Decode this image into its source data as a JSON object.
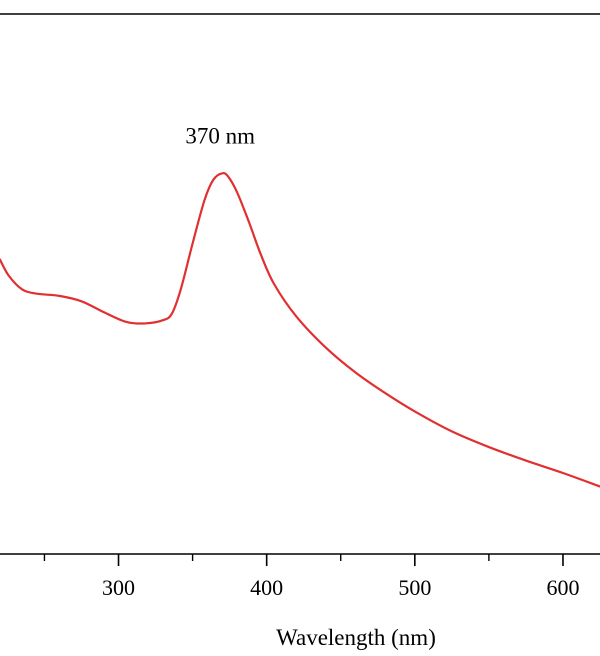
{
  "chart_data": {
    "type": "line",
    "title": "",
    "xlabel": "Wavelength (nm)",
    "ylabel": "",
    "xlim": [
      220,
      625
    ],
    "ylim": [
      0,
      1
    ],
    "grid": false,
    "x_ticks": [
      300,
      400,
      500,
      600
    ],
    "x_tick_labels": [
      "300",
      "400",
      "500",
      "600"
    ],
    "x_minor_ticks": [
      250,
      350,
      450,
      550
    ],
    "annotations": [
      {
        "text": "370 nm",
        "x": 370,
        "y": 0.76
      }
    ],
    "series": [
      {
        "color": "#e03030",
        "x": [
          220,
          226,
          235,
          245,
          260,
          275,
          290,
          305,
          318,
          330,
          336,
          342,
          350,
          358,
          364,
          370,
          374,
          380,
          388,
          396,
          405,
          420,
          440,
          460,
          480,
          500,
          525,
          550,
          575,
          600,
          625
        ],
        "y": [
          0.545,
          0.515,
          0.49,
          0.482,
          0.478,
          0.468,
          0.448,
          0.43,
          0.427,
          0.433,
          0.445,
          0.49,
          0.575,
          0.655,
          0.693,
          0.705,
          0.699,
          0.67,
          0.615,
          0.555,
          0.5,
          0.44,
          0.382,
          0.336,
          0.298,
          0.264,
          0.227,
          0.198,
          0.173,
          0.15,
          0.125
        ]
      }
    ]
  }
}
